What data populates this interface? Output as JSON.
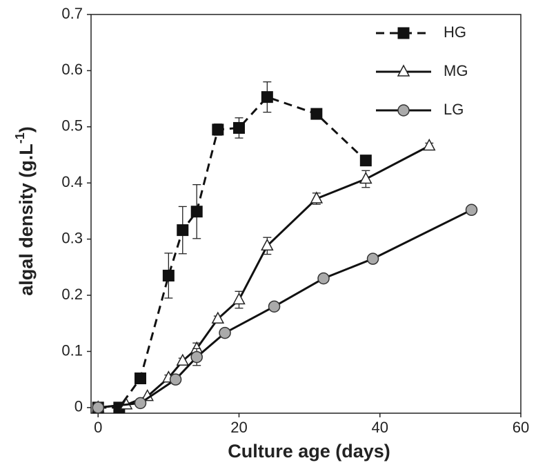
{
  "chart_data": {
    "type": "line",
    "xlabel": "Culture age (days)",
    "ylabel": [
      "algal density (g.L",
      "-1",
      ")"
    ],
    "xlim": [
      -1,
      60
    ],
    "xticks": [
      0,
      20,
      40,
      60
    ],
    "ylim": [
      -0.01,
      0.7
    ],
    "yticks": [
      0,
      0.1,
      0.2,
      0.3,
      0.4,
      0.5,
      0.6,
      0.7
    ],
    "legend": "upper right",
    "series": [
      {
        "name": "HG",
        "color": "#111111",
        "marker": "square",
        "dash": true,
        "x": [
          0,
          3,
          6,
          10,
          12,
          14,
          17,
          20,
          24,
          31,
          38
        ],
        "values": [
          0,
          0,
          0.052,
          0.235,
          0.316,
          0.349,
          0.495,
          0.498,
          0.553,
          0.523,
          0.44
        ],
        "errors": [
          0,
          0,
          0.005,
          0.04,
          0.042,
          0.048,
          0.01,
          0.018,
          0.027,
          0.008,
          0.005
        ]
      },
      {
        "name": "MG",
        "color": "#111111",
        "marker": "triangle",
        "dash": false,
        "x": [
          0,
          4,
          7,
          10,
          12,
          14,
          17,
          20,
          24,
          31,
          38,
          47
        ],
        "values": [
          0,
          0.005,
          0.02,
          0.053,
          0.083,
          0.105,
          0.158,
          0.192,
          0.288,
          0.372,
          0.407,
          0.466
        ],
        "errors": [
          0,
          0,
          0,
          0.005,
          0.005,
          0.01,
          0.005,
          0.015,
          0.015,
          0.01,
          0.015,
          0.005
        ]
      },
      {
        "name": "LG",
        "color": "#111111",
        "marker": "circle",
        "dash": false,
        "x": [
          0,
          6,
          11,
          14,
          18,
          25,
          32,
          39,
          53
        ],
        "values": [
          0,
          0.008,
          0.05,
          0.09,
          0.133,
          0.18,
          0.23,
          0.265,
          0.352
        ],
        "errors": [
          0,
          0,
          0.005,
          0.015,
          0.005,
          0.005,
          0.005,
          0.005,
          0.005
        ]
      }
    ]
  }
}
